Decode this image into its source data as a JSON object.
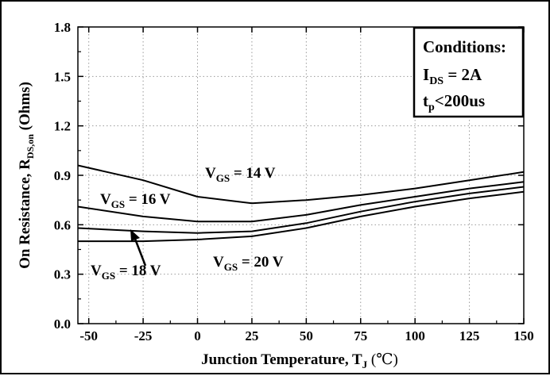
{
  "chart_data": {
    "type": "line",
    "xlabel": {
      "main": "Junction Temperature, T",
      "sub": "J",
      "unit": " (℃)"
    },
    "ylabel": {
      "main": "On Resistance, R",
      "sub": "DS,on",
      "unit": " (Ohms)"
    },
    "xlim": [
      -55,
      150
    ],
    "ylim": [
      0.0,
      1.8
    ],
    "xticks": [
      "-50",
      "-25",
      "0",
      "25",
      "50",
      "75",
      "100",
      "125",
      "150"
    ],
    "xtick_values": [
      -50,
      -25,
      0,
      25,
      50,
      75,
      100,
      125,
      150
    ],
    "yticks": [
      "0.0",
      "0.3",
      "0.6",
      "0.9",
      "1.2",
      "1.5",
      "1.8"
    ],
    "ytick_values": [
      0.0,
      0.3,
      0.6,
      0.9,
      1.2,
      1.5,
      1.8
    ],
    "grid": true,
    "series": [
      {
        "name": "VGS = 14 V",
        "x": [
          -55,
          -25,
          0,
          25,
          50,
          75,
          100,
          125,
          150
        ],
        "values": [
          0.96,
          0.87,
          0.77,
          0.73,
          0.75,
          0.78,
          0.82,
          0.87,
          0.92
        ]
      },
      {
        "name": "VGS = 16 V",
        "x": [
          -55,
          -25,
          0,
          25,
          50,
          75,
          100,
          125,
          150
        ],
        "values": [
          0.71,
          0.65,
          0.62,
          0.62,
          0.66,
          0.72,
          0.77,
          0.82,
          0.86
        ]
      },
      {
        "name": "VGS = 18 V",
        "x": [
          -55,
          -25,
          0,
          25,
          50,
          75,
          100,
          125,
          150
        ],
        "values": [
          0.58,
          0.56,
          0.55,
          0.56,
          0.61,
          0.68,
          0.74,
          0.79,
          0.83
        ]
      },
      {
        "name": "VGS = 20 V",
        "x": [
          -55,
          -25,
          0,
          25,
          50,
          75,
          100,
          125,
          150
        ],
        "values": [
          0.5,
          0.5,
          0.51,
          0.53,
          0.58,
          0.65,
          0.71,
          0.76,
          0.8
        ]
      }
    ],
    "annotations": [
      {
        "main": "V",
        "sub": "GS",
        "rest": " = 14 V"
      },
      {
        "main": "V",
        "sub": "GS",
        "rest": " = 16 V"
      },
      {
        "main": "V",
        "sub": "GS",
        "rest": " = 18 V"
      },
      {
        "main": "V",
        "sub": "GS",
        "rest": " = 20 V"
      }
    ],
    "conditions": {
      "title": "Conditions:",
      "line1": {
        "main": "I",
        "sub": "DS",
        "rest": " = 2A"
      },
      "line2": {
        "main": "t",
        "sub": "p",
        "rest": "<200us"
      }
    }
  }
}
